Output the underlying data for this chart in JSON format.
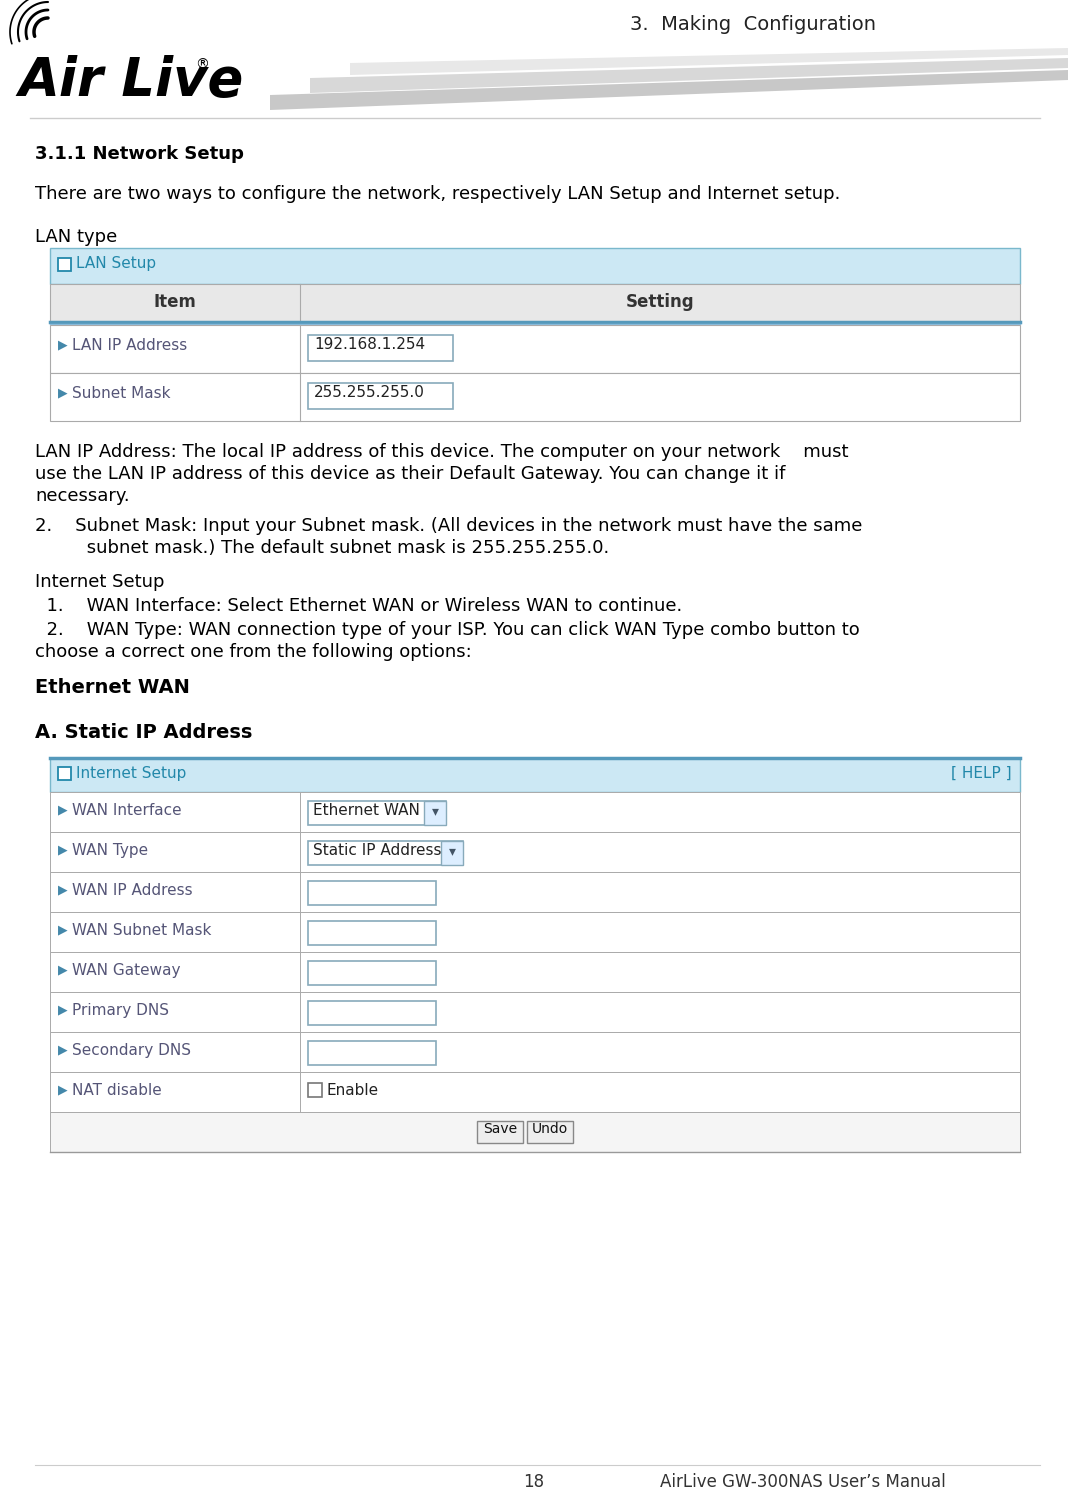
{
  "page_title": "3.  Making  Configuration",
  "section_title": "3.1.1 Network Setup",
  "intro_text": "There are two ways to configure the network, respectively LAN Setup and Internet setup.",
  "lan_type_label": "LAN type",
  "lan_table_header_title": "LAN Setup",
  "lan_table_col1": "Item",
  "lan_table_col2": "Setting",
  "lan_rows": [
    {
      "item": "LAN IP Address",
      "value": "192.168.1.254"
    },
    {
      "item": "Subnet Mask",
      "value": "255.255.255.0"
    }
  ],
  "lan_desc1": "LAN IP Address: The local IP address of this device. The computer on your network    must",
  "lan_desc2": "use the LAN IP address of this device as their Default Gateway. You can change it if",
  "lan_desc3": "necessary.",
  "lan_desc4": "2.    Subnet Mask: Input your Subnet mask. (All devices in the network must have the same",
  "lan_desc5": "         subnet mask.) The default subnet mask is 255.255.255.0.",
  "internet_setup_label": "Internet Setup",
  "internet_item1": "  1.    WAN Interface: Select Ethernet WAN or Wireless WAN to continue.",
  "internet_item2": "  2.    WAN Type: WAN connection type of your ISP. You can click WAN Type combo button to",
  "internet_item3": "choose a correct one from the following options:",
  "ethernet_wan_label": "Ethernet WAN",
  "static_ip_label": "A. Static IP Address",
  "inet_table_header_title": "Internet Setup",
  "inet_table_help": "[ HELP ]",
  "inet_rows": [
    {
      "item": "WAN Interface",
      "value": "Ethernet WAN",
      "type": "dropdown"
    },
    {
      "item": "WAN Type",
      "value": "Static IP Address",
      "type": "dropdown"
    },
    {
      "item": "WAN IP Address",
      "value": "",
      "type": "input"
    },
    {
      "item": "WAN Subnet Mask",
      "value": "",
      "type": "input"
    },
    {
      "item": "WAN Gateway",
      "value": "",
      "type": "input"
    },
    {
      "item": "Primary DNS",
      "value": "",
      "type": "input"
    },
    {
      "item": "Secondary DNS",
      "value": "",
      "type": "input"
    },
    {
      "item": "NAT disable",
      "value": "Enable",
      "type": "checkbox"
    }
  ],
  "save_button": "Save",
  "undo_button": "Undo",
  "page_num": "18",
  "footer_text": "AirLive GW-300NAS User’s Manual",
  "bg_color": "#ffffff",
  "table_header_bg": "#cce8f4",
  "table_header_border": "#7ab8cc",
  "table_col_header_bg": "#e8e8e8",
  "table_border": "#aaaaaa",
  "table_blue_border": "#5599bb",
  "header_text_color": "#2288aa",
  "body_text_color": "#000000",
  "row_item_color": "#555555",
  "input_border_color": "#88aabb"
}
